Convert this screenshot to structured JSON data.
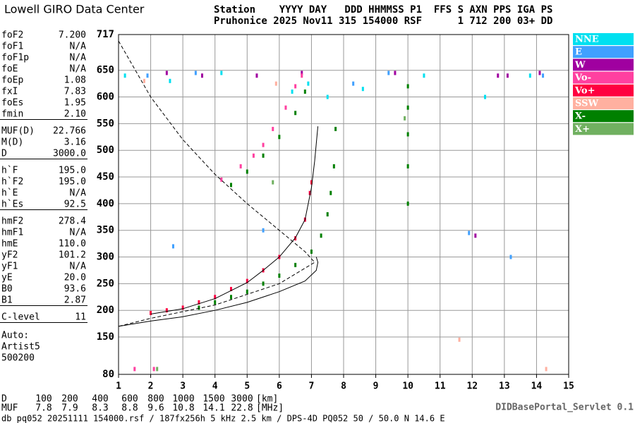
{
  "header": {
    "brand": "Lowell GIRO Data Center",
    "columns": "Station    YYYY DAY   DDD HHMMSS P1  FFS S AXN PPS IGA PS",
    "values": "Pruhonice 2025 Nov11 315 154000 RSF      1 712 200 03+ DD"
  },
  "params": [
    [
      [
        "foF2",
        "7.200"
      ],
      [
        "foF1",
        "N/A"
      ],
      [
        "foF1p",
        "N/A"
      ],
      [
        "foE",
        "N/A"
      ],
      [
        "foEp",
        "1.08"
      ],
      [
        "fxI",
        "7.83"
      ],
      [
        "foEs",
        "1.95"
      ],
      [
        "fmin",
        "2.10"
      ]
    ],
    [
      [
        "MUF(D)",
        "22.766"
      ],
      [
        "M(D)",
        "3.16"
      ],
      [
        "D",
        "3000.0"
      ]
    ],
    [
      [
        "h`F",
        "195.0"
      ],
      [
        "h`F2",
        "195.0"
      ],
      [
        "h`E",
        "N/A"
      ],
      [
        "h`Es",
        "92.5"
      ]
    ],
    [
      [
        "hmF2",
        "278.4"
      ],
      [
        "hmF1",
        "N/A"
      ],
      [
        "hmE",
        "110.0"
      ],
      [
        "yF2",
        "101.2"
      ],
      [
        "yF1",
        "N/A"
      ],
      [
        "yE",
        "20.0"
      ],
      [
        "B0",
        "93.6"
      ],
      [
        "B1",
        "2.87"
      ]
    ],
    [
      [
        "C-level",
        "11"
      ]
    ]
  ],
  "autoscaling": [
    "Auto:",
    "Artist5",
    "500200"
  ],
  "muf_table": {
    "d_label": "D",
    "d": [
      100,
      200,
      400,
      600,
      800,
      1000,
      1500,
      3000
    ],
    "d_unit": "[km]",
    "muf_label": "MUF",
    "muf": [
      7.8,
      7.9,
      8.3,
      8.8,
      9.6,
      10.8,
      14.1,
      22.8
    ],
    "muf_unit": "[MHz]"
  },
  "footer": {
    "file": "db pq052 20251111 154000.rsf / 187fx256h 5 kHz 2.5 km / DPS-4D PQ052 50 / 50.0 N 14.6 E",
    "servlet": "DIDBasePortal_Servlet 0.1"
  },
  "chart_data": {
    "type": "scatter",
    "xlim": [
      1,
      15
    ],
    "ylim": [
      80,
      717
    ],
    "xticks": [
      1,
      2,
      3,
      4,
      5,
      6,
      7,
      8,
      9,
      10,
      11,
      12,
      13,
      14,
      15
    ],
    "yticks": [
      80,
      150,
      200,
      250,
      300,
      350,
      400,
      450,
      500,
      550,
      600,
      650,
      717
    ],
    "grid": true,
    "legend": "right",
    "series": [
      {
        "name": "NNE",
        "color": "#00e0f0",
        "x": [
          1.2,
          2.6,
          4.2,
          6.4,
          6.9,
          7.5,
          8.6,
          10.5,
          12.4,
          13.8
        ],
        "y": [
          640,
          630,
          645,
          610,
          625,
          600,
          615,
          640,
          600,
          640
        ]
      },
      {
        "name": "E",
        "color": "#40a0ff",
        "x": [
          1.9,
          2.7,
          3.4,
          5.5,
          8.3,
          9.4,
          11.9,
          13.2,
          14.2
        ],
        "y": [
          640,
          320,
          645,
          350,
          625,
          645,
          345,
          300,
          640
        ]
      },
      {
        "name": "W",
        "color": "#a000a0",
        "x": [
          2.5,
          3.6,
          5.3,
          6.7,
          9.6,
          12.1,
          12.8,
          13.1,
          14.1
        ],
        "y": [
          645,
          640,
          640,
          645,
          645,
          340,
          640,
          640,
          645
        ]
      },
      {
        "name": "Vo-",
        "color": "#ff40a0",
        "x": [
          4.2,
          4.8,
          5.2,
          5.5,
          5.8,
          6.2,
          6.5,
          6.7,
          2.1,
          1.5
        ],
        "y": [
          445,
          470,
          490,
          510,
          540,
          580,
          620,
          640,
          90,
          90
        ]
      },
      {
        "name": "Vo+",
        "color": "#ff0040",
        "x": [
          2.0,
          2.5,
          3.0,
          3.5,
          4.0,
          4.5,
          5.0,
          5.5,
          6.0,
          6.5,
          6.8,
          6.95,
          7.0
        ],
        "y": [
          195,
          200,
          205,
          215,
          225,
          240,
          255,
          275,
          300,
          335,
          370,
          420,
          440
        ]
      },
      {
        "name": "SSW",
        "color": "#ffb0a0",
        "x": [
          1.8,
          5.9,
          11.6,
          14.3
        ],
        "y": [
          630,
          625,
          145,
          90
        ]
      },
      {
        "name": "X-",
        "color": "#008000",
        "x": [
          3.5,
          4.0,
          4.5,
          5.0,
          5.5,
          6.0,
          6.5,
          7.0,
          7.3,
          7.5,
          7.6,
          7.7,
          7.75,
          4.5,
          5.0,
          5.5,
          6.0,
          6.5,
          6.8,
          10.0,
          10.0,
          10.0,
          10.0,
          10.0
        ],
        "y": [
          205,
          215,
          225,
          235,
          250,
          265,
          285,
          310,
          340,
          380,
          420,
          470,
          540,
          435,
          460,
          490,
          525,
          570,
          610,
          400,
          470,
          530,
          580,
          620
        ]
      },
      {
        "name": "X+",
        "color": "#70b060",
        "x": [
          2.2,
          5.8,
          9.9
        ],
        "y": [
          90,
          440,
          560
        ]
      }
    ],
    "curves": [
      {
        "style": "solid",
        "color": "#000000",
        "x": [
          2.0,
          3.0,
          4.0,
          5.0,
          5.5,
          6.0,
          6.5,
          6.8,
          7.0,
          7.1,
          7.2
        ],
        "y": [
          193,
          203,
          222,
          252,
          275,
          300,
          336,
          370,
          430,
          480,
          545
        ]
      },
      {
        "style": "solid",
        "color": "#000000",
        "x": [
          1.0,
          2.0,
          3.0,
          4.0,
          5.0,
          6.0,
          6.8,
          7.15,
          7.2,
          7.15
        ],
        "y": [
          170,
          180,
          188,
          200,
          215,
          235,
          255,
          275,
          290,
          300
        ]
      },
      {
        "style": "dashed",
        "color": "#000000",
        "x": [
          1.0,
          2.0,
          3.0,
          4.0,
          5.0,
          6.0,
          6.8,
          7.1,
          6.0,
          4.0,
          2.0,
          1.0
        ],
        "y": [
          705,
          600,
          520,
          455,
          400,
          350,
          310,
          290,
          250,
          210,
          185,
          170
        ]
      }
    ]
  }
}
